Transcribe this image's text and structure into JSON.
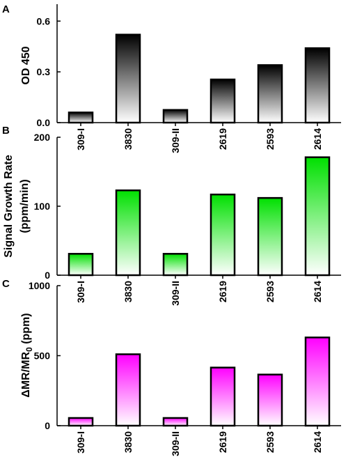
{
  "chart_data": [
    {
      "panel": "A",
      "type": "bar",
      "categories": [
        "309-I",
        "3830",
        "309-II",
        "2619",
        "2593",
        "2614"
      ],
      "values": [
        0.06,
        0.52,
        0.075,
        0.255,
        0.34,
        0.44
      ],
      "ylabel": "OD 450",
      "ylim": [
        0,
        0.7
      ],
      "yticks": [
        0.0,
        0.3,
        0.6
      ],
      "ytick_labels": [
        "0.0",
        "0.3",
        "0.6"
      ],
      "color": "#000000",
      "grid": false
    },
    {
      "panel": "B",
      "type": "bar",
      "categories": [
        "309-I",
        "3830",
        "309-II",
        "2619",
        "2593",
        "2614"
      ],
      "values": [
        31,
        123,
        31,
        117,
        112,
        171
      ],
      "ylabel": "Signal Growth Rate",
      "ylabel2": "(ppm/min)",
      "ylim": [
        0,
        200
      ],
      "yticks": [
        0,
        100,
        200
      ],
      "ytick_labels": [
        "0",
        "100",
        "200"
      ],
      "color": "#00e000",
      "grid": false
    },
    {
      "panel": "C",
      "type": "bar",
      "categories": [
        "309-I",
        "3830",
        "309-II",
        "2619",
        "2593",
        "2614"
      ],
      "values": [
        55,
        510,
        55,
        415,
        365,
        630
      ],
      "ylabel_prefix": "ΔMR/MR",
      "ylabel_sub": "0",
      "ylabel_suffix": " (ppm)",
      "ylim": [
        0,
        1000
      ],
      "yticks": [
        0,
        500,
        1000
      ],
      "ytick_labels": [
        "0",
        "500",
        "1000"
      ],
      "color": "#ff00ff",
      "grid": false
    }
  ]
}
